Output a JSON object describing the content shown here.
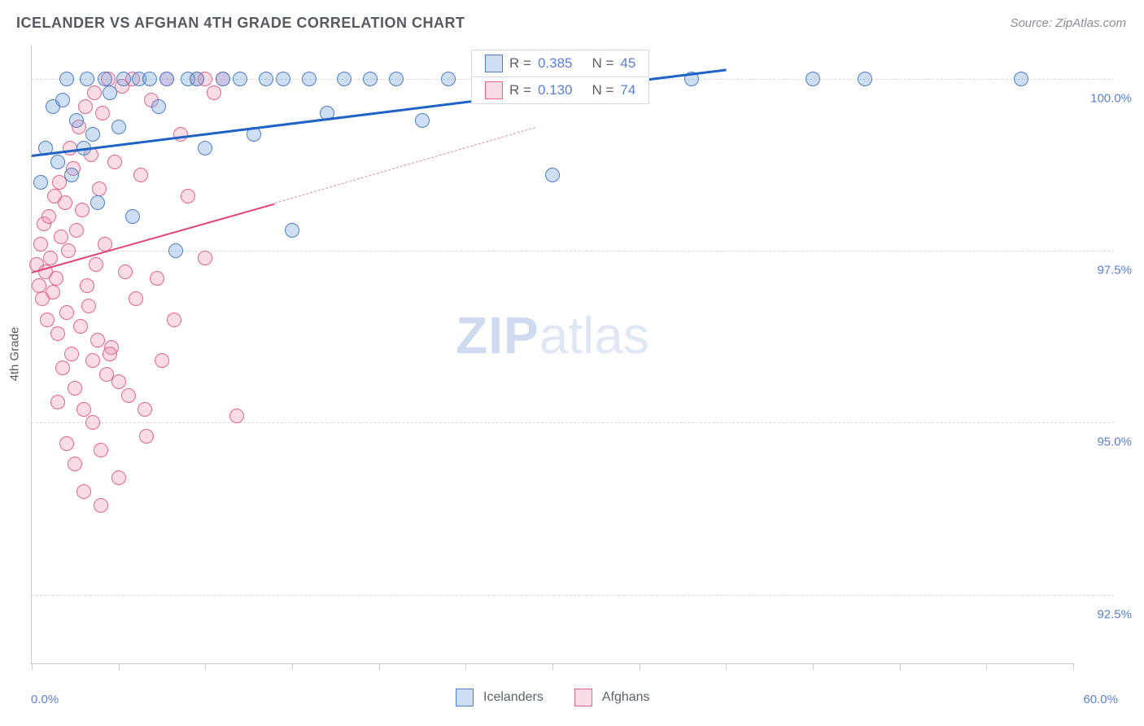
{
  "title": "ICELANDER VS AFGHAN 4TH GRADE CORRELATION CHART",
  "source": "Source: ZipAtlas.com",
  "y_axis_title": "4th Grade",
  "watermark_bold": "ZIP",
  "watermark_light": "atlas",
  "chart": {
    "type": "scatter",
    "xlim": [
      0,
      60
    ],
    "ylim": [
      91.5,
      100.5
    ],
    "x_ticks": [
      0,
      5,
      10,
      15,
      20,
      25,
      30,
      35,
      40,
      45,
      50,
      55,
      60
    ],
    "y_gridlines": [
      92.5,
      95.0,
      97.5,
      100.0
    ],
    "y_tick_labels": [
      "92.5%",
      "95.0%",
      "97.5%",
      "100.0%"
    ],
    "x_min_label": "0.0%",
    "x_max_label": "60.0%",
    "background_color": "#ffffff",
    "grid_color": "#d6d9dd",
    "axis_color": "#c9ccd2",
    "axis_label_color": "#5b7fd6",
    "marker_radius": 9,
    "marker_stroke_width": 1.5,
    "series": [
      {
        "name": "Icelanders",
        "fill": "rgba(116,160,222,0.35)",
        "stroke": "#4f7ec7",
        "r_value": "0.385",
        "n_value": "45",
        "trend": {
          "x1": 0,
          "y1": 98.9,
          "x2": 40,
          "y2": 100.15,
          "color": "#1f63c7",
          "width": 3,
          "dash": false
        },
        "points": [
          [
            0.5,
            98.5
          ],
          [
            0.8,
            99.0
          ],
          [
            1.2,
            99.6
          ],
          [
            1.5,
            98.8
          ],
          [
            1.8,
            99.7
          ],
          [
            2.0,
            100.0
          ],
          [
            2.3,
            98.6
          ],
          [
            2.6,
            99.4
          ],
          [
            3.0,
            99.0
          ],
          [
            3.2,
            100.0
          ],
          [
            3.5,
            99.2
          ],
          [
            3.8,
            98.2
          ],
          [
            4.2,
            100.0
          ],
          [
            4.5,
            99.8
          ],
          [
            5.0,
            99.3
          ],
          [
            5.3,
            100.0
          ],
          [
            5.8,
            98.0
          ],
          [
            6.2,
            100.0
          ],
          [
            6.8,
            100.0
          ],
          [
            7.3,
            99.6
          ],
          [
            7.8,
            100.0
          ],
          [
            8.3,
            97.5
          ],
          [
            9.0,
            100.0
          ],
          [
            9.5,
            100.0
          ],
          [
            10.0,
            99.0
          ],
          [
            11.0,
            100.0
          ],
          [
            12.0,
            100.0
          ],
          [
            12.8,
            99.2
          ],
          [
            13.5,
            100.0
          ],
          [
            14.5,
            100.0
          ],
          [
            15.0,
            97.8
          ],
          [
            16.0,
            100.0
          ],
          [
            17.0,
            99.5
          ],
          [
            18.0,
            100.0
          ],
          [
            19.5,
            100.0
          ],
          [
            21.0,
            100.0
          ],
          [
            22.5,
            99.4
          ],
          [
            24.0,
            100.0
          ],
          [
            27.0,
            100.0
          ],
          [
            29.0,
            100.0
          ],
          [
            30.0,
            98.6
          ],
          [
            38.0,
            100.0
          ],
          [
            45.0,
            100.0
          ],
          [
            48.0,
            100.0
          ],
          [
            57.0,
            100.0
          ]
        ]
      },
      {
        "name": "Afghans",
        "fill": "rgba(240,140,170,0.30)",
        "stroke": "#e2648f",
        "r_value": "0.130",
        "n_value": "74",
        "trend": {
          "x1": 0,
          "y1": 97.2,
          "x2": 14,
          "y2": 98.2,
          "color": "#e2447a",
          "width": 2.5,
          "dash": false
        },
        "trend_extra": {
          "x1": 14,
          "y1": 98.2,
          "x2": 29,
          "y2": 99.3,
          "color": "#e28aa8",
          "width": 1.5,
          "dash": true
        },
        "points": [
          [
            0.3,
            97.3
          ],
          [
            0.4,
            97.0
          ],
          [
            0.5,
            97.6
          ],
          [
            0.6,
            96.8
          ],
          [
            0.7,
            97.9
          ],
          [
            0.8,
            97.2
          ],
          [
            0.9,
            96.5
          ],
          [
            1.0,
            98.0
          ],
          [
            1.1,
            97.4
          ],
          [
            1.2,
            96.9
          ],
          [
            1.3,
            98.3
          ],
          [
            1.4,
            97.1
          ],
          [
            1.5,
            96.3
          ],
          [
            1.6,
            98.5
          ],
          [
            1.7,
            97.7
          ],
          [
            1.8,
            95.8
          ],
          [
            1.9,
            98.2
          ],
          [
            2.0,
            96.6
          ],
          [
            2.1,
            97.5
          ],
          [
            2.2,
            99.0
          ],
          [
            2.3,
            96.0
          ],
          [
            2.4,
            98.7
          ],
          [
            2.5,
            95.5
          ],
          [
            2.6,
            97.8
          ],
          [
            2.7,
            99.3
          ],
          [
            2.8,
            96.4
          ],
          [
            2.9,
            98.1
          ],
          [
            3.0,
            95.2
          ],
          [
            3.1,
            99.6
          ],
          [
            3.2,
            97.0
          ],
          [
            3.3,
            96.7
          ],
          [
            3.4,
            98.9
          ],
          [
            3.5,
            95.0
          ],
          [
            3.6,
            99.8
          ],
          [
            3.7,
            97.3
          ],
          [
            3.8,
            96.2
          ],
          [
            3.9,
            98.4
          ],
          [
            4.0,
            94.6
          ],
          [
            4.1,
            99.5
          ],
          [
            4.2,
            97.6
          ],
          [
            4.3,
            95.7
          ],
          [
            4.4,
            100.0
          ],
          [
            4.6,
            96.1
          ],
          [
            4.8,
            98.8
          ],
          [
            5.0,
            94.2
          ],
          [
            5.2,
            99.9
          ],
          [
            5.4,
            97.2
          ],
          [
            5.6,
            95.4
          ],
          [
            5.8,
            100.0
          ],
          [
            6.0,
            96.8
          ],
          [
            6.3,
            98.6
          ],
          [
            6.6,
            94.8
          ],
          [
            6.9,
            99.7
          ],
          [
            7.2,
            97.1
          ],
          [
            7.5,
            95.9
          ],
          [
            7.8,
            100.0
          ],
          [
            8.2,
            96.5
          ],
          [
            8.6,
            99.2
          ],
          [
            9.0,
            98.3
          ],
          [
            9.5,
            100.0
          ],
          [
            10.0,
            97.4
          ],
          [
            10.0,
            100.0
          ],
          [
            10.5,
            99.8
          ],
          [
            11.0,
            100.0
          ],
          [
            11.8,
            95.1
          ],
          [
            2.5,
            94.4
          ],
          [
            3.0,
            94.0
          ],
          [
            3.5,
            95.9
          ],
          [
            4.0,
            93.8
          ],
          [
            1.5,
            95.3
          ],
          [
            2.0,
            94.7
          ],
          [
            4.5,
            96.0
          ],
          [
            5.0,
            95.6
          ],
          [
            6.5,
            95.2
          ]
        ]
      }
    ]
  },
  "legend_bottom": {
    "series1_label": "Icelanders",
    "series2_label": "Afghans"
  },
  "legend_top": {
    "r_prefix": "R =",
    "n_prefix": "N ="
  }
}
